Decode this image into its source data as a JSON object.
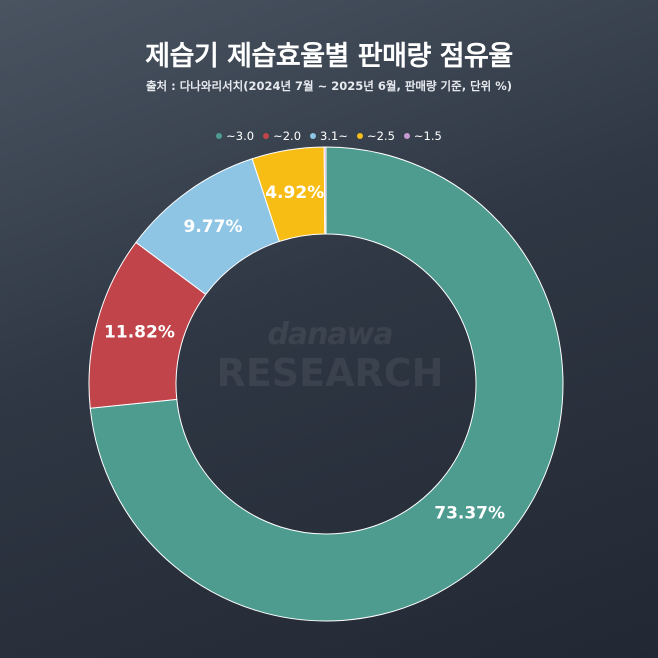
{
  "title": "제습기 제습효율별 판매량 점유율",
  "subtitle": "출처 : 다나와리서치(2024년 7월 ~ 2025년 6월, 판매량 기준, 단위 %)",
  "watermark": {
    "top": "danawa",
    "bottom": "RESEARCH"
  },
  "chart_data": {
    "type": "pie",
    "variant": "donut",
    "legend_position": "top",
    "categories": [
      "~3.0",
      "~2.0",
      "3.1~",
      "~2.5",
      "~1.5"
    ],
    "values": [
      73.37,
      11.82,
      9.77,
      4.92,
      0.12
    ],
    "data_labels": [
      "73.37%",
      "11.82%",
      "9.77%",
      "4.92%",
      ""
    ],
    "colors": [
      "#4e9c90",
      "#c0444a",
      "#8ec4e4",
      "#f8bd14",
      "#c79ad0"
    ]
  }
}
